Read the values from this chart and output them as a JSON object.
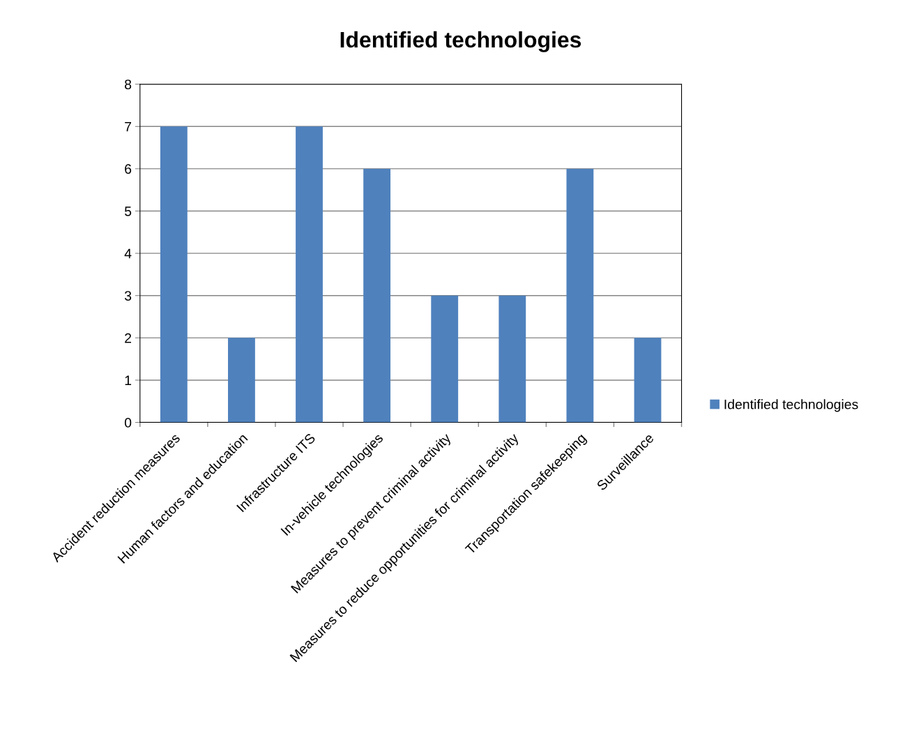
{
  "chart_data": {
    "type": "bar",
    "title": "Identified technologies",
    "categories": [
      "Accident reduction measures",
      "Human factors and education",
      "Infrastructure ITS",
      "In-vehicle technologies",
      "Measures to prevent criminal activity",
      "Measures to reduce opportunities for criminal activity",
      "Transportation safekeeping",
      "Surveillance"
    ],
    "series": [
      {
        "name": "Identified technologies",
        "color": "#4f81bd",
        "values": [
          7,
          2,
          7,
          6,
          3,
          3,
          6,
          2
        ]
      }
    ],
    "ylim": [
      0,
      8
    ],
    "yticks": [
      0,
      1,
      2,
      3,
      4,
      5,
      6,
      7,
      8
    ],
    "grid": "y",
    "legend": "right"
  }
}
